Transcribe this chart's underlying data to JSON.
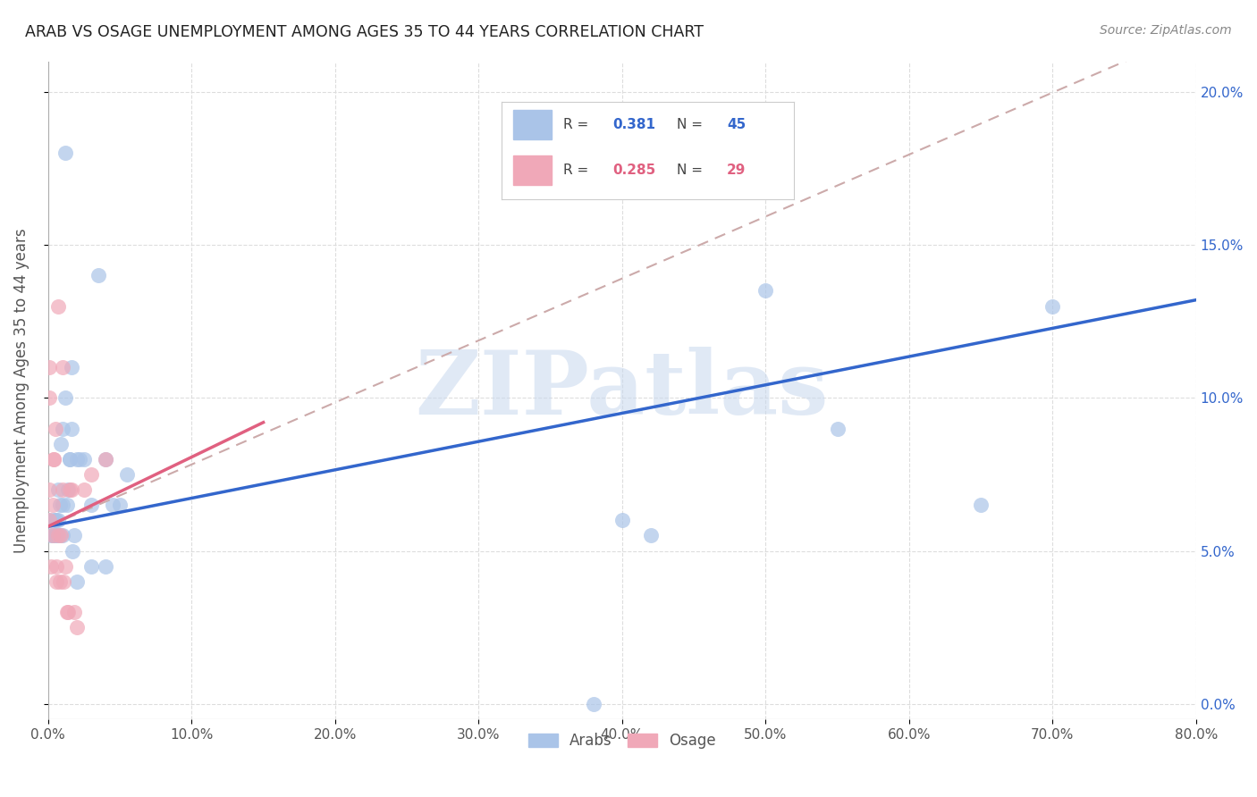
{
  "title": "ARAB VS OSAGE UNEMPLOYMENT AMONG AGES 35 TO 44 YEARS CORRELATION CHART",
  "source": "Source: ZipAtlas.com",
  "ylabel": "Unemployment Among Ages 35 to 44 years",
  "xlim": [
    0,
    0.8
  ],
  "ylim": [
    -0.005,
    0.21
  ],
  "xticks": [
    0.0,
    0.1,
    0.2,
    0.3,
    0.4,
    0.5,
    0.6,
    0.7,
    0.8
  ],
  "yticks": [
    0.0,
    0.05,
    0.1,
    0.15,
    0.2
  ],
  "arab_color": "#aac4e8",
  "osage_color": "#f0a8b8",
  "arab_line_color": "#3366cc",
  "osage_line_color": "#e06080",
  "osage_dash_color": "#ccaaaa",
  "legend_arab_R": "0.381",
  "legend_arab_N": "45",
  "legend_osage_R": "0.285",
  "legend_osage_N": "29",
  "watermark": "ZIPatlas",
  "background_color": "#ffffff",
  "arab_x": [
    0.001,
    0.002,
    0.003,
    0.004,
    0.005,
    0.005,
    0.006,
    0.006,
    0.007,
    0.007,
    0.008,
    0.008,
    0.009,
    0.01,
    0.01,
    0.01,
    0.012,
    0.012,
    0.013,
    0.014,
    0.015,
    0.015,
    0.016,
    0.016,
    0.017,
    0.018,
    0.02,
    0.02,
    0.022,
    0.025,
    0.03,
    0.03,
    0.035,
    0.04,
    0.04,
    0.045,
    0.05,
    0.055,
    0.38,
    0.4,
    0.42,
    0.5,
    0.55,
    0.65,
    0.7
  ],
  "arab_y": [
    0.06,
    0.055,
    0.055,
    0.06,
    0.06,
    0.055,
    0.055,
    0.06,
    0.06,
    0.07,
    0.055,
    0.065,
    0.085,
    0.055,
    0.065,
    0.09,
    0.1,
    0.18,
    0.065,
    0.07,
    0.08,
    0.08,
    0.11,
    0.09,
    0.05,
    0.055,
    0.04,
    0.08,
    0.08,
    0.08,
    0.045,
    0.065,
    0.14,
    0.08,
    0.045,
    0.065,
    0.065,
    0.075,
    0.0,
    0.06,
    0.055,
    0.135,
    0.09,
    0.065,
    0.13
  ],
  "osage_x": [
    0.001,
    0.001,
    0.001,
    0.001,
    0.002,
    0.003,
    0.003,
    0.004,
    0.004,
    0.005,
    0.006,
    0.006,
    0.007,
    0.007,
    0.008,
    0.009,
    0.01,
    0.01,
    0.011,
    0.012,
    0.013,
    0.014,
    0.015,
    0.016,
    0.018,
    0.02,
    0.025,
    0.03,
    0.04
  ],
  "osage_y": [
    0.06,
    0.07,
    0.1,
    0.11,
    0.045,
    0.055,
    0.065,
    0.08,
    0.08,
    0.09,
    0.04,
    0.045,
    0.055,
    0.13,
    0.04,
    0.055,
    0.07,
    0.11,
    0.04,
    0.045,
    0.03,
    0.03,
    0.07,
    0.07,
    0.03,
    0.025,
    0.07,
    0.075,
    0.08
  ],
  "arab_trend": [
    0.06,
    0.13
  ],
  "osage_trend_x_end": 0.15,
  "osage_trend": [
    0.06,
    0.1
  ]
}
